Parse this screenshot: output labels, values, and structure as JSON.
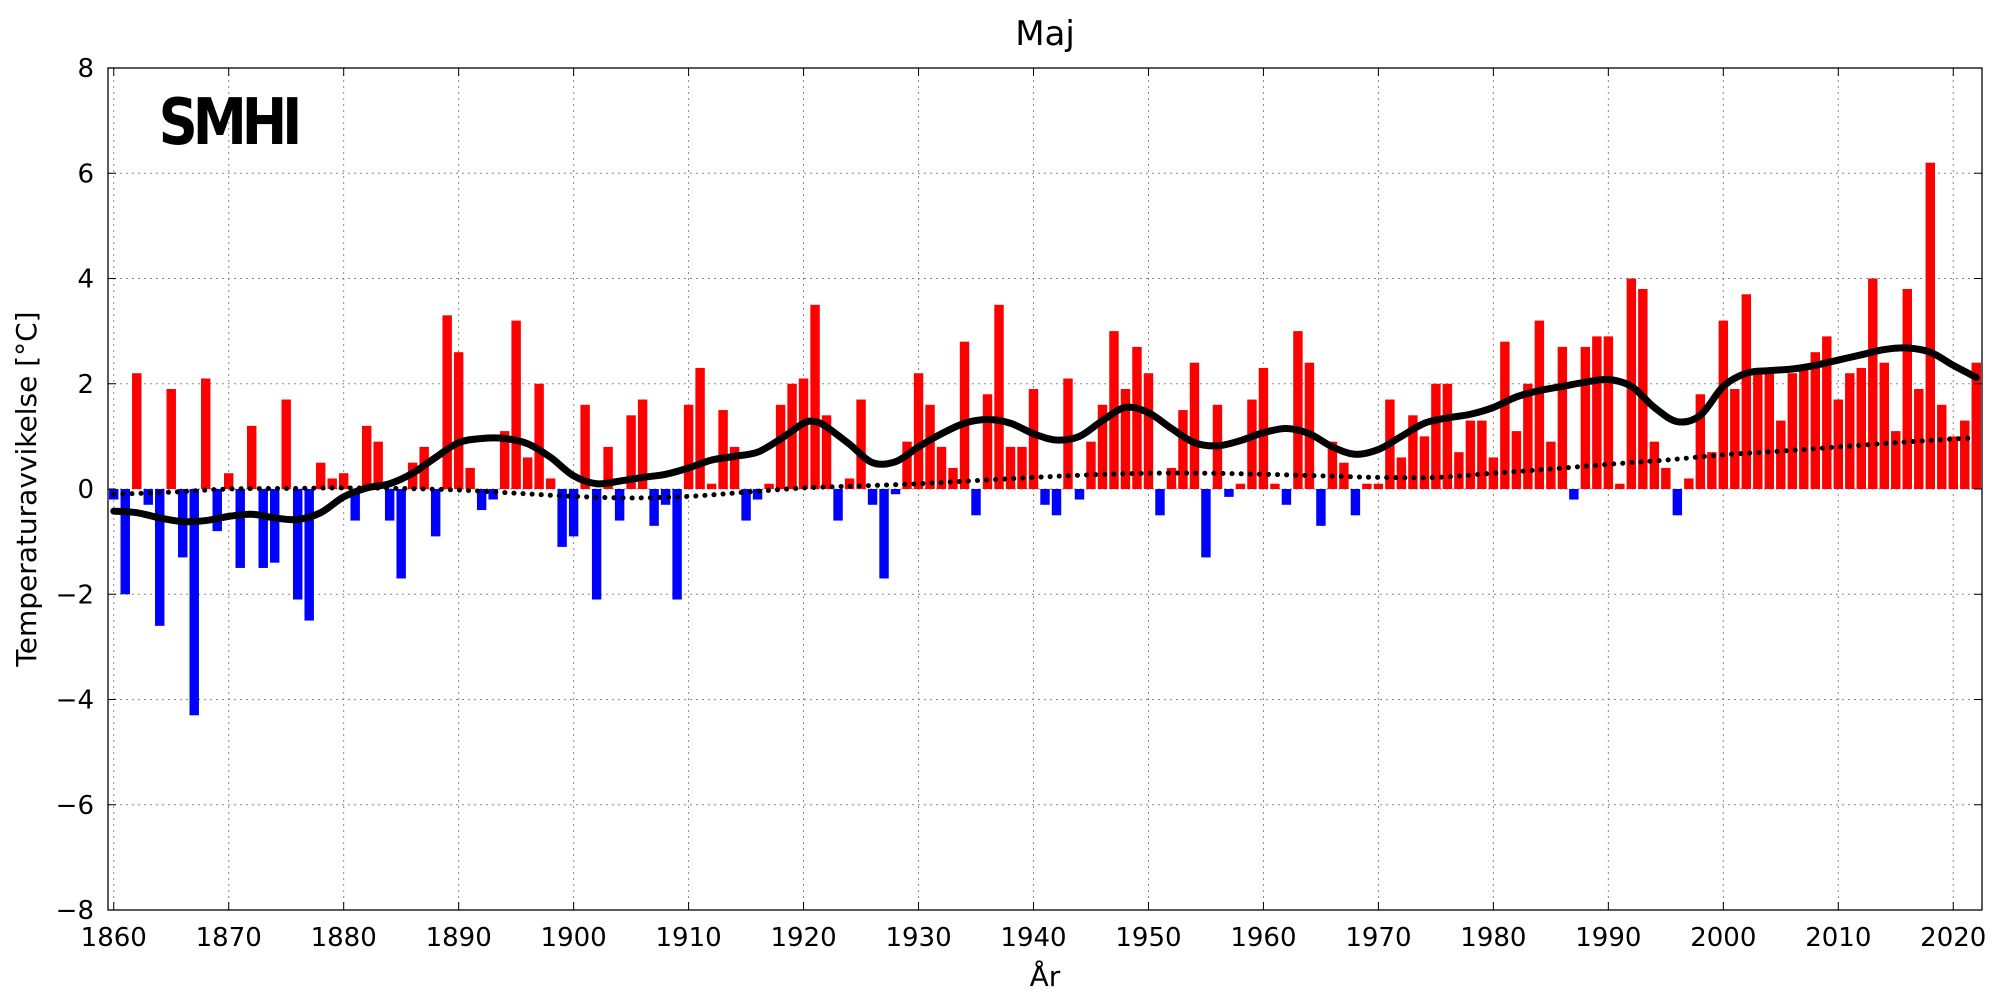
{
  "chart_data": {
    "type": "bar",
    "title": "Maj",
    "xlabel": "År",
    "ylabel": "Temperaturavvikelse [°C]",
    "logo": "SMHI",
    "xlim": [
      1859.5,
      2022.5
    ],
    "ylim": [
      -8,
      8
    ],
    "xticks": [
      1860,
      1870,
      1880,
      1890,
      1900,
      1910,
      1920,
      1930,
      1940,
      1950,
      1960,
      1970,
      1980,
      1990,
      2000,
      2010,
      2020
    ],
    "yticks": [
      -8,
      -6,
      -4,
      -2,
      0,
      2,
      4,
      6,
      8
    ],
    "grid": true,
    "colors": {
      "positive": "#ff0000",
      "negative": "#0000ff",
      "smoothed": "#000000",
      "trend": "#000000"
    },
    "series": [
      {
        "kind": "bar",
        "x_start": 1860,
        "values": [
          -0.2,
          -2.0,
          2.2,
          -0.3,
          -2.6,
          1.9,
          -1.3,
          -4.3,
          2.1,
          -0.8,
          0.3,
          -1.5,
          1.2,
          -1.5,
          -1.4,
          1.7,
          -2.1,
          -2.5,
          0.5,
          0.2,
          0.3,
          -0.6,
          1.2,
          0.9,
          -0.6,
          -1.7,
          0.5,
          0.8,
          -0.9,
          3.3,
          2.6,
          0.4,
          -0.4,
          -0.2,
          1.1,
          3.2,
          0.6,
          2.0,
          0.2,
          -1.1,
          -0.9,
          1.6,
          -2.1,
          0.8,
          -0.6,
          1.4,
          1.7,
          -0.7,
          -0.3,
          -2.1,
          1.6,
          2.3,
          0.1,
          1.5,
          0.8,
          -0.6,
          -0.2,
          0.1,
          1.6,
          2.0,
          2.1,
          3.5,
          1.4,
          -0.6,
          0.2,
          1.7,
          -0.3,
          -1.7,
          -0.1,
          0.9,
          2.2,
          1.6,
          0.8,
          0.4,
          2.8,
          -0.5,
          1.8,
          3.5,
          0.8,
          0.8,
          1.9,
          -0.3,
          -0.5,
          2.1,
          -0.2,
          0.9,
          1.6,
          3.0,
          1.9,
          2.7,
          2.2,
          -0.5,
          0.4,
          1.5,
          2.4,
          -1.3,
          1.6,
          -0.15,
          0.1,
          1.7,
          2.3,
          0.1,
          -0.3,
          3.0,
          2.4,
          -0.7,
          0.9,
          0.5,
          -0.5,
          0.1,
          0.1,
          1.7,
          0.6,
          1.4,
          1.0,
          2.0,
          2.0,
          0.7,
          1.3,
          1.3,
          0.6,
          2.8,
          1.1,
          2.0,
          3.2,
          0.9,
          2.7,
          -0.2,
          2.7,
          2.9,
          2.9,
          0.1,
          4.0,
          3.8,
          0.9,
          0.4,
          -0.5,
          0.2,
          1.8,
          0.7,
          3.2,
          1.9,
          3.7,
          2.3,
          2.2,
          1.3,
          2.2,
          2.3,
          2.6,
          2.9,
          1.7,
          2.2,
          2.3,
          4.0,
          2.4,
          1.1,
          3.8,
          1.9,
          6.2,
          1.6,
          1.0,
          1.3,
          2.4
        ]
      },
      {
        "kind": "line",
        "name": "smoothed",
        "points": [
          [
            1860,
            -0.42
          ],
          [
            1862,
            -0.45
          ],
          [
            1864,
            -0.55
          ],
          [
            1866,
            -0.62
          ],
          [
            1868,
            -0.6
          ],
          [
            1870,
            -0.52
          ],
          [
            1872,
            -0.48
          ],
          [
            1874,
            -0.55
          ],
          [
            1876,
            -0.58
          ],
          [
            1878,
            -0.45
          ],
          [
            1880,
            -0.15
          ],
          [
            1882,
            0.02
          ],
          [
            1884,
            0.1
          ],
          [
            1886,
            0.3
          ],
          [
            1888,
            0.6
          ],
          [
            1890,
            0.88
          ],
          [
            1892,
            0.96
          ],
          [
            1894,
            0.96
          ],
          [
            1896,
            0.86
          ],
          [
            1898,
            0.6
          ],
          [
            1900,
            0.25
          ],
          [
            1902,
            0.1
          ],
          [
            1904,
            0.15
          ],
          [
            1906,
            0.22
          ],
          [
            1908,
            0.28
          ],
          [
            1910,
            0.4
          ],
          [
            1912,
            0.55
          ],
          [
            1914,
            0.62
          ],
          [
            1916,
            0.7
          ],
          [
            1918,
            0.95
          ],
          [
            1920,
            1.25
          ],
          [
            1921,
            1.28
          ],
          [
            1922,
            1.18
          ],
          [
            1924,
            0.85
          ],
          [
            1926,
            0.5
          ],
          [
            1928,
            0.52
          ],
          [
            1930,
            0.8
          ],
          [
            1932,
            1.05
          ],
          [
            1934,
            1.25
          ],
          [
            1936,
            1.32
          ],
          [
            1938,
            1.25
          ],
          [
            1940,
            1.05
          ],
          [
            1942,
            0.93
          ],
          [
            1944,
            1.0
          ],
          [
            1946,
            1.3
          ],
          [
            1948,
            1.55
          ],
          [
            1950,
            1.45
          ],
          [
            1952,
            1.15
          ],
          [
            1954,
            0.88
          ],
          [
            1956,
            0.82
          ],
          [
            1958,
            0.92
          ],
          [
            1960,
            1.07
          ],
          [
            1962,
            1.15
          ],
          [
            1964,
            1.05
          ],
          [
            1966,
            0.8
          ],
          [
            1968,
            0.66
          ],
          [
            1970,
            0.75
          ],
          [
            1972,
            1.0
          ],
          [
            1974,
            1.25
          ],
          [
            1976,
            1.35
          ],
          [
            1978,
            1.42
          ],
          [
            1980,
            1.55
          ],
          [
            1982,
            1.75
          ],
          [
            1984,
            1.87
          ],
          [
            1986,
            1.95
          ],
          [
            1988,
            2.03
          ],
          [
            1990,
            2.08
          ],
          [
            1992,
            1.95
          ],
          [
            1994,
            1.55
          ],
          [
            1996,
            1.28
          ],
          [
            1998,
            1.4
          ],
          [
            2000,
            1.95
          ],
          [
            2002,
            2.2
          ],
          [
            2004,
            2.25
          ],
          [
            2006,
            2.28
          ],
          [
            2008,
            2.35
          ],
          [
            2010,
            2.45
          ],
          [
            2012,
            2.55
          ],
          [
            2014,
            2.65
          ],
          [
            2016,
            2.68
          ],
          [
            2018,
            2.6
          ],
          [
            2020,
            2.35
          ],
          [
            2022,
            2.12
          ]
        ]
      },
      {
        "kind": "dotted",
        "name": "trend",
        "points": [
          [
            1860,
            -0.1
          ],
          [
            1865,
            -0.06
          ],
          [
            1870,
            0.0
          ],
          [
            1875,
            0.01
          ],
          [
            1880,
            0.02
          ],
          [
            1885,
            0.01
          ],
          [
            1890,
            -0.02
          ],
          [
            1895,
            -0.08
          ],
          [
            1900,
            -0.14
          ],
          [
            1905,
            -0.17
          ],
          [
            1910,
            -0.14
          ],
          [
            1915,
            -0.06
          ],
          [
            1920,
            0.02
          ],
          [
            1925,
            0.06
          ],
          [
            1930,
            0.1
          ],
          [
            1935,
            0.16
          ],
          [
            1940,
            0.22
          ],
          [
            1945,
            0.27
          ],
          [
            1950,
            0.3
          ],
          [
            1955,
            0.3
          ],
          [
            1960,
            0.28
          ],
          [
            1965,
            0.25
          ],
          [
            1970,
            0.22
          ],
          [
            1975,
            0.22
          ],
          [
            1980,
            0.3
          ],
          [
            1985,
            0.38
          ],
          [
            1990,
            0.47
          ],
          [
            1995,
            0.55
          ],
          [
            2000,
            0.65
          ],
          [
            2005,
            0.72
          ],
          [
            2010,
            0.8
          ],
          [
            2015,
            0.88
          ],
          [
            2020,
            0.95
          ],
          [
            2022,
            0.97
          ]
        ]
      }
    ]
  }
}
